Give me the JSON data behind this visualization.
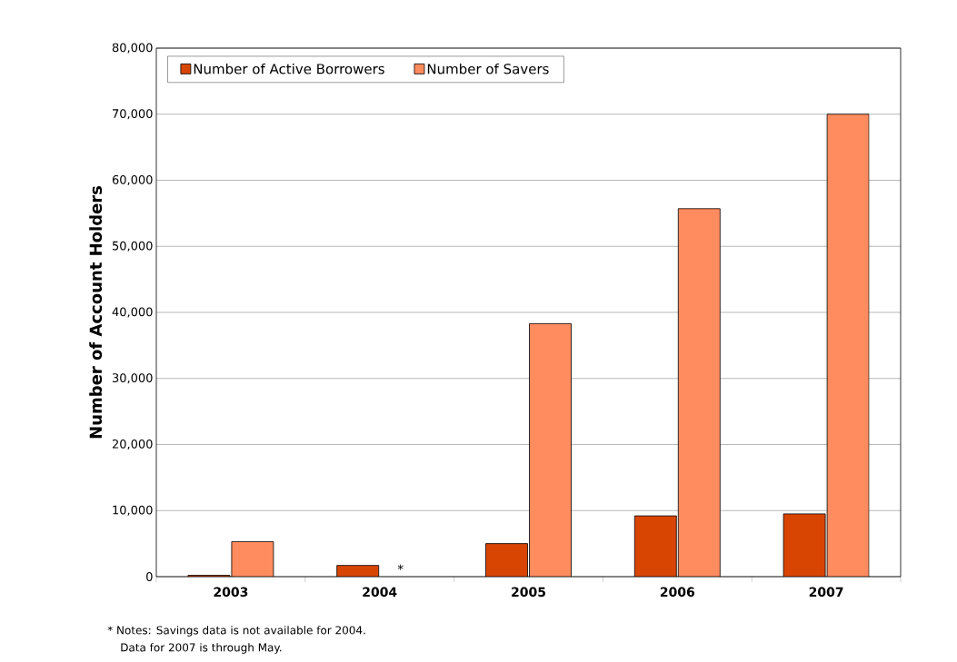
{
  "chart_data": {
    "type": "bar",
    "ylabel": "Number of Account Holders",
    "categories": [
      "2003",
      "2004",
      "2005",
      "2006",
      "2007"
    ],
    "series": [
      {
        "name": "Number of Active Borrowers",
        "color": "#d84503",
        "values": [
          200,
          1700,
          5000,
          9200,
          9500
        ]
      },
      {
        "name": "Number of Savers",
        "color": "#ff8c5f",
        "values": [
          5300,
          null,
          38300,
          55700,
          70000
        ]
      }
    ],
    "ylim": [
      0,
      80000
    ],
    "yticks": [
      {
        "value": 0,
        "label": "0"
      },
      {
        "value": 10000,
        "label": "10,000"
      },
      {
        "value": 20000,
        "label": "20,000"
      },
      {
        "value": 30000,
        "label": "30,000"
      },
      {
        "value": 40000,
        "label": "40,000"
      },
      {
        "value": 50000,
        "label": "50,000"
      },
      {
        "value": 60000,
        "label": "60,000"
      },
      {
        "value": 70000,
        "label": "70,000"
      },
      {
        "value": 80000,
        "label": "80,000"
      }
    ],
    "grid": "y",
    "legend": "top left",
    "annotations": [
      {
        "text": "*",
        "x": "2004",
        "y": 0
      },
      "* Notes:  Savings data is not available for 2004.",
      "Data for 2007 is through May."
    ]
  }
}
